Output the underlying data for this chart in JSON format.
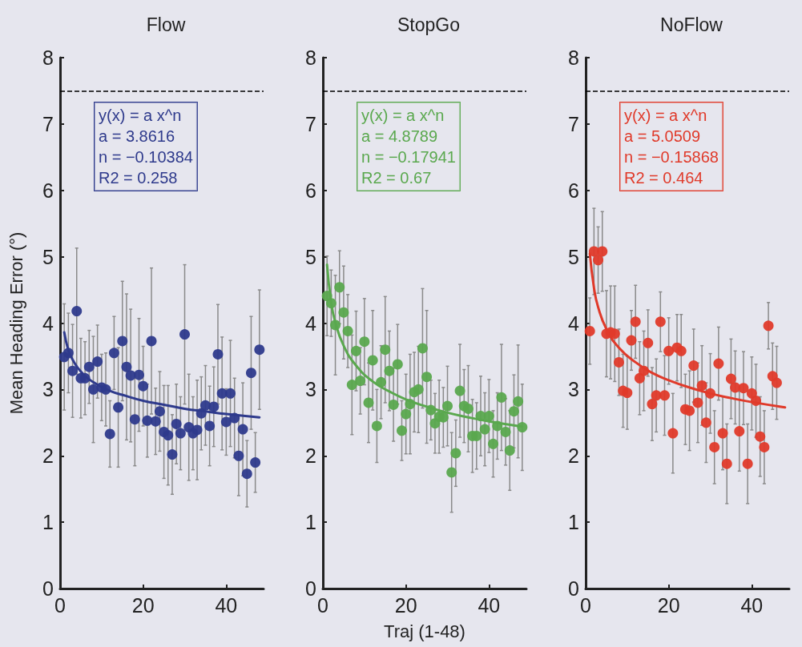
{
  "chart_data": [
    {
      "type": "scatter",
      "title": "Flow",
      "ylabel": "Mean Heading Error (°)",
      "xlim": [
        0,
        49
      ],
      "ylim": [
        0,
        8
      ],
      "xticks": [
        0,
        20,
        40
      ],
      "yticks": [
        0,
        1,
        2,
        3,
        4,
        5,
        6,
        7,
        8
      ],
      "grid": false,
      "marker": "circle",
      "annotations": [
        "y(x) = a x^n",
        "a = 3.8616",
        "n = −0.10384",
        "R2 = 0.258"
      ],
      "ref_lines": [
        {
          "axis": "y",
          "value": 7.5,
          "color": "#000000",
          "line_style": "dashed"
        }
      ],
      "series": [
        {
          "color": "#2e3a8c",
          "x": [
            1,
            2,
            3,
            4,
            5,
            6,
            7,
            8,
            9,
            10,
            11,
            12,
            13,
            14,
            15,
            16,
            17,
            18,
            19,
            20,
            21,
            22,
            23,
            24,
            25,
            26,
            27,
            28,
            29,
            30,
            31,
            32,
            33,
            34,
            35,
            36,
            37,
            38,
            39,
            40,
            41,
            42,
            43,
            44,
            45,
            46,
            47,
            48
          ],
          "values": [
            3.49,
            3.55,
            3.28,
            4.18,
            3.17,
            3.17,
            3.34,
            3.0,
            3.42,
            3.03,
            3.0,
            2.33,
            3.55,
            2.73,
            3.73,
            3.34,
            3.21,
            2.55,
            3.22,
            3.05,
            2.53,
            3.73,
            2.52,
            2.67,
            2.36,
            2.31,
            2.02,
            2.48,
            2.34,
            3.83,
            2.43,
            2.34,
            2.39,
            2.64,
            2.76,
            2.45,
            2.74,
            3.53,
            2.94,
            2.51,
            2.94,
            2.57,
            2.0,
            2.4,
            1.73,
            3.25,
            1.9,
            3.6
          ],
          "errors": [
            0.8,
            0.6,
            0.7,
            0.95,
            0.6,
            0.55,
            0.55,
            0.8,
            0.55,
            0.5,
            0.55,
            0.5,
            0.55,
            0.9,
            0.9,
            1.1,
            1.0,
            0.7,
            0.85,
            0.6,
            0.55,
            1.1,
            0.5,
            0.6,
            0.7,
            0.75,
            0.6,
            0.6,
            0.55,
            1.05,
            0.8,
            0.55,
            0.75,
            0.55,
            0.6,
            0.6,
            0.6,
            0.75,
            0.85,
            0.5,
            0.8,
            0.6,
            0.6,
            0.7,
            0.5,
            0.85,
            0.45,
            0.9
          ]
        },
        {
          "type": "line",
          "color": "#2e3a8c",
          "line_style": "solid",
          "marker": "none",
          "x": [
            1,
            2,
            3,
            5,
            8,
            12,
            16,
            20,
            25,
            30,
            35,
            40,
            48
          ],
          "values": [
            3.86,
            3.59,
            3.45,
            3.27,
            3.11,
            2.98,
            2.9,
            2.83,
            2.77,
            2.71,
            2.67,
            2.63,
            2.58
          ]
        }
      ]
    },
    {
      "type": "scatter",
      "title": "StopGo",
      "xlabel": "Traj (1-48)",
      "xlim": [
        0,
        49
      ],
      "ylim": [
        0,
        8
      ],
      "xticks": [
        0,
        20,
        40
      ],
      "yticks": [
        0,
        1,
        2,
        3,
        4,
        5,
        6,
        7,
        8
      ],
      "grid": false,
      "marker": "circle",
      "annotations": [
        "y(x) = a x^n",
        "a = 4.8789",
        "n = −0.17941",
        "R2 = 0.67"
      ],
      "ref_lines": [
        {
          "axis": "y",
          "value": 7.5,
          "color": "#000000",
          "line_style": "dashed"
        }
      ],
      "series": [
        {
          "color": "#5aa84e",
          "x": [
            1,
            2,
            3,
            4,
            5,
            6,
            7,
            8,
            9,
            10,
            11,
            12,
            13,
            14,
            15,
            16,
            17,
            18,
            19,
            20,
            21,
            22,
            23,
            24,
            25,
            26,
            27,
            28,
            29,
            30,
            31,
            32,
            33,
            34,
            35,
            36,
            37,
            38,
            39,
            40,
            41,
            42,
            43,
            44,
            45,
            46,
            47,
            48
          ],
          "values": [
            4.41,
            4.3,
            3.97,
            4.54,
            4.16,
            3.88,
            3.07,
            3.58,
            3.13,
            3.72,
            2.8,
            3.44,
            2.45,
            3.11,
            3.6,
            3.28,
            2.77,
            3.38,
            2.38,
            2.63,
            2.78,
            2.96,
            3.0,
            3.62,
            3.19,
            2.69,
            2.49,
            2.59,
            2.58,
            2.75,
            1.75,
            2.04,
            2.98,
            2.75,
            2.71,
            2.3,
            2.3,
            2.6,
            2.4,
            2.6,
            2.18,
            2.45,
            2.88,
            2.36,
            2.08,
            2.67,
            2.82,
            2.43
          ],
          "errors": [
            0.6,
            0.5,
            0.75,
            0.55,
            0.7,
            0.55,
            0.75,
            0.6,
            0.5,
            0.65,
            0.6,
            0.75,
            0.55,
            0.55,
            0.8,
            0.6,
            0.55,
            0.6,
            0.45,
            0.6,
            0.75,
            0.6,
            0.65,
            0.9,
            1.0,
            0.45,
            0.45,
            0.55,
            0.45,
            0.6,
            0.6,
            0.5,
            0.7,
            0.55,
            0.65,
            0.55,
            0.5,
            0.6,
            0.55,
            0.55,
            0.5,
            0.5,
            0.8,
            0.5,
            0.6,
            0.55,
            0.85,
            0.65
          ]
        },
        {
          "type": "line",
          "color": "#5aa84e",
          "line_style": "solid",
          "marker": "none",
          "x": [
            1,
            2,
            3,
            5,
            8,
            12,
            16,
            20,
            25,
            30,
            35,
            40,
            48
          ],
          "values": [
            4.88,
            4.31,
            4.01,
            3.66,
            3.36,
            3.12,
            2.97,
            2.85,
            2.74,
            2.65,
            2.58,
            2.52,
            2.44
          ]
        }
      ]
    },
    {
      "type": "scatter",
      "title": "NoFlow",
      "xlim": [
        0,
        49
      ],
      "ylim": [
        0,
        8
      ],
      "xticks": [
        0,
        20,
        40
      ],
      "yticks": [
        0,
        1,
        2,
        3,
        4,
        5,
        6,
        7,
        8
      ],
      "grid": false,
      "marker": "circle",
      "annotations": [
        "y(x) = a x^n",
        "a = 5.0509",
        "n = −0.15868",
        "R2 = 0.464"
      ],
      "ref_lines": [
        {
          "axis": "y",
          "value": 7.5,
          "color": "#000000",
          "line_style": "dashed"
        }
      ],
      "series": [
        {
          "color": "#e03a2a",
          "x": [
            1,
            2,
            3,
            4,
            5,
            6,
            7,
            8,
            9,
            10,
            11,
            12,
            13,
            14,
            15,
            16,
            17,
            18,
            19,
            20,
            21,
            22,
            23,
            24,
            25,
            26,
            27,
            28,
            29,
            30,
            31,
            32,
            33,
            34,
            35,
            36,
            37,
            38,
            39,
            40,
            41,
            42,
            43,
            44,
            45,
            46
          ],
          "values": [
            3.88,
            5.08,
            4.95,
            5.08,
            3.84,
            3.86,
            3.84,
            3.41,
            2.98,
            2.95,
            3.74,
            4.02,
            3.17,
            3.28,
            3.7,
            2.78,
            2.91,
            4.02,
            2.91,
            3.58,
            2.34,
            3.63,
            3.58,
            2.7,
            2.68,
            3.36,
            2.8,
            3.06,
            2.5,
            2.94,
            2.13,
            3.39,
            2.34,
            1.88,
            3.16,
            3.03,
            2.37,
            3.02,
            1.88,
            2.94,
            2.83,
            2.29,
            2.13,
            3.96,
            3.2,
            3.1
          ],
          "errors": [
            0.5,
            0.65,
            0.5,
            0.6,
            0.65,
            0.7,
            0.72,
            0.5,
            0.55,
            0.55,
            0.45,
            0.55,
            0.55,
            0.6,
            0.5,
            0.55,
            0.55,
            0.45,
            0.6,
            0.5,
            0.6,
            0.5,
            0.55,
            0.53,
            0.6,
            0.55,
            0.6,
            0.6,
            0.6,
            0.6,
            0.55,
            0.55,
            0.55,
            0.6,
            0.6,
            0.55,
            0.6,
            0.55,
            0.6,
            0.55,
            0.55,
            0.6,
            0.55,
            0.35,
            0.5,
            0.55
          ]
        },
        {
          "type": "line",
          "color": "#e03a2a",
          "line_style": "solid",
          "marker": "none",
          "x": [
            1,
            2,
            3,
            5,
            8,
            12,
            16,
            20,
            25,
            30,
            35,
            40,
            48
          ],
          "values": [
            5.05,
            4.53,
            4.24,
            3.91,
            3.63,
            3.41,
            3.25,
            3.14,
            3.03,
            2.94,
            2.87,
            2.81,
            2.73
          ]
        }
      ]
    }
  ]
}
